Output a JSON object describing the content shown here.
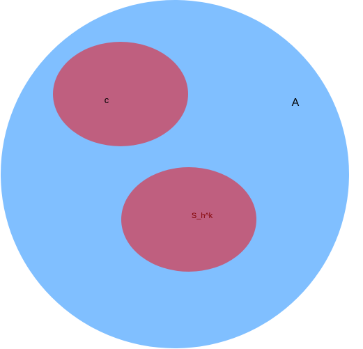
{
  "diagram": {
    "outer_set": {
      "label": "A",
      "fill": "#80bfff",
      "label_color": "#000000"
    },
    "inner_sets": [
      {
        "label": "c",
        "fill": "#bf5f7f",
        "label_color": "#000000"
      },
      {
        "label": "S_h^k",
        "fill": "#bf5f7f",
        "label_color": "#800000"
      }
    ]
  }
}
